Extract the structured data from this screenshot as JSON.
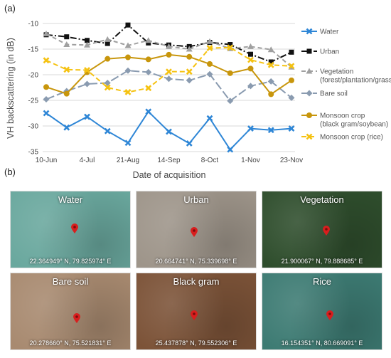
{
  "panels": {
    "a": "(a)",
    "b": "(b)"
  },
  "chart_data": {
    "type": "line",
    "xlabel": "Date of acquisition",
    "ylabel": "VH backscattering (in dB)",
    "ylim": [
      -35,
      -10
    ],
    "yticks": [
      -10,
      -15,
      -20,
      -25,
      -30,
      -35
    ],
    "tick_labels": [
      "10-Jun",
      "4-Jul",
      "21-Aug",
      "14-Sep",
      "8-Oct",
      "1-Nov",
      "23-Nov"
    ],
    "legend_position": "right",
    "series": [
      {
        "name": "Water",
        "color": "#2e86d6",
        "marker": "x",
        "dash": "",
        "values": [
          -27.5,
          -30.3,
          -28.2,
          -31.0,
          -33.3,
          -27.2,
          -31.1,
          -33.4,
          -28.5,
          -34.6,
          -30.5,
          -30.8,
          -30.5
        ]
      },
      {
        "name": "Urban",
        "color": "#111111",
        "marker": "square",
        "dash": "9,3,2,3",
        "values": [
          -12.2,
          -12.6,
          -13.3,
          -13.9,
          -10.3,
          -13.8,
          -14.2,
          -14.5,
          -13.7,
          -14.1,
          -16.0,
          -17.5,
          -15.6
        ]
      },
      {
        "name": "Vegetation (forest/plantation/grass)",
        "color": "#a0a0a0",
        "marker": "triangle",
        "dash": "6,4",
        "values": [
          -12.0,
          -14.1,
          -14.2,
          -13.1,
          -14.3,
          -13.3,
          -14.5,
          -15.0,
          -13.5,
          -14.9,
          -14.5,
          -15.1,
          -18.5
        ]
      },
      {
        "name": "Bare soil",
        "color": "#8a9bb0",
        "marker": "diamond",
        "dash": "12,4",
        "values": [
          -24.8,
          -23.2,
          -21.8,
          -21.6,
          -19.2,
          -19.5,
          -20.8,
          -21.1,
          -19.9,
          -25.1,
          -22.2,
          -21.3,
          -24.5
        ]
      },
      {
        "name": "Monsoon crop (black gram/soybean)",
        "color": "#c8960c",
        "marker": "circle",
        "dash": "",
        "values": [
          -22.4,
          -23.7,
          -19.5,
          -16.9,
          -16.6,
          -17.0,
          -16.1,
          -16.5,
          -17.9,
          -19.7,
          -18.8,
          -23.8,
          -21.1
        ]
      },
      {
        "name": "Monsoon crop (rice)",
        "color": "#f5c211",
        "marker": "x",
        "dash": "7,4",
        "values": [
          -17.2,
          -19.0,
          -19.1,
          -22.5,
          -23.4,
          -22.6,
          -19.4,
          -19.4,
          -14.8,
          -14.7,
          -17.1,
          -18.1,
          -18.3
        ]
      }
    ]
  },
  "legend_lines": [
    [
      "Water"
    ],
    [
      "Urban"
    ],
    [
      "Vegetation",
      "(forest/plantation/grass)"
    ],
    [
      "Bare soil"
    ],
    [
      "Monsoon crop",
      "(black gram/soybean)"
    ],
    [
      "Monsoon crop (rice)"
    ]
  ],
  "tiles": [
    {
      "title": "Water",
      "coords": "22.364949° N, 79.825974° E",
      "bg": "#6aa89e"
    },
    {
      "title": "Urban",
      "coords": "20.664741° N, 75.339698° E",
      "bg": "#9e958a"
    },
    {
      "title": "Vegetation",
      "coords": "21.900067° N, 79.888685° E",
      "bg": "#2f4e2d"
    },
    {
      "title": "Bare soil",
      "coords": "20.278660° N, 75.521831° E",
      "bg": "#a88a70"
    },
    {
      "title": "Black gram",
      "coords": "25.437878° N, 79.552306° E",
      "bg": "#7c5338"
    },
    {
      "title": "Rice",
      "coords": "16.154351° N, 80.669091° E",
      "bg": "#3d7b73"
    }
  ]
}
